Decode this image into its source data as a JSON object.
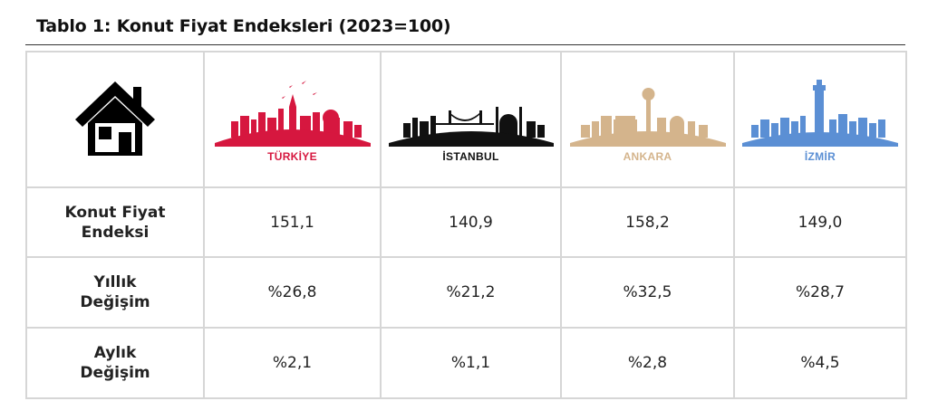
{
  "title": "Tablo 1: Konut Fiyat Endeksleri (2023=100)",
  "columns": [
    {
      "name": "TÜRKİYE",
      "color": "#d6173f"
    },
    {
      "name": "İSTANBUL",
      "color": "#111111"
    },
    {
      "name": "ANKARA",
      "color": "#d4b48c"
    },
    {
      "name": "İZMİR",
      "color": "#5b8fd4"
    }
  ],
  "rows": [
    {
      "label_line1": "Konut Fiyat",
      "label_line2": "Endeksi",
      "values": [
        "151,1",
        "140,9",
        "158,2",
        "149,0"
      ]
    },
    {
      "label_line1": "Yıllık",
      "label_line2": "Değişim",
      "values": [
        "%26,8",
        "%21,2",
        "%32,5",
        "%28,7"
      ]
    },
    {
      "label_line1": "Aylık",
      "label_line2": "Değişim",
      "values": [
        "%2,1",
        "%1,1",
        "%2,8",
        "%4,5"
      ]
    }
  ],
  "icons": {
    "header": "house-icon"
  }
}
